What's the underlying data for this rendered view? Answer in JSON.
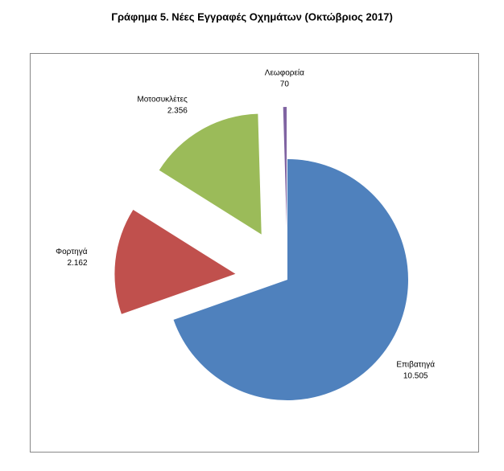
{
  "chart_data": {
    "type": "pie",
    "title": "Γράφημα 5. Νέες Εγγραφές Οχημάτων (Οκτώβριος 2017)",
    "categories": [
      "Επιβατηγά",
      "Φορτηγά",
      "Μοτοσυκλέτες",
      "Λεωφορεία"
    ],
    "values": [
      10505,
      2162,
      2356,
      70
    ],
    "value_labels": [
      "10.505",
      "2.162",
      "2.356",
      "70"
    ],
    "colors": [
      "#4f81bd",
      "#c0504d",
      "#9bbb59",
      "#8064a2"
    ]
  }
}
